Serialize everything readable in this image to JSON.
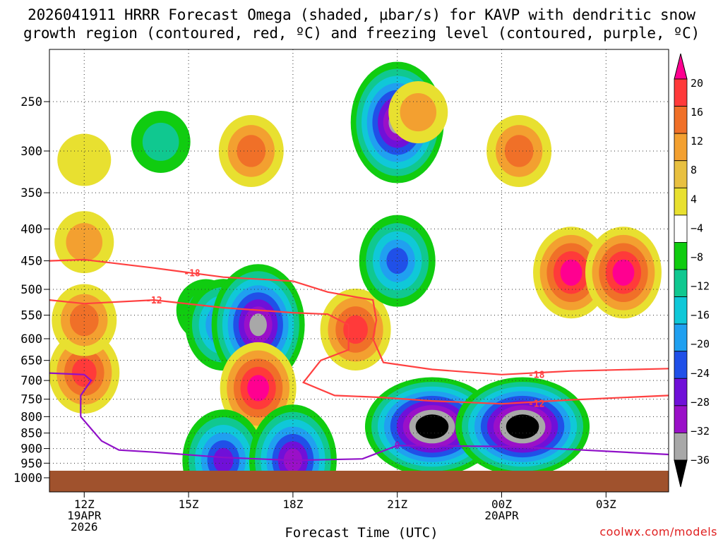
{
  "title_line1": "2026041911 HRRR Forecast Omega (shaded, µbar/s) for KAVP with dendritic snow",
  "title_line2": "growth region (contoured, red, ºC) and freezing level (contoured, purple, ºC)",
  "footer_url": "coolwx.com/models",
  "chart_data": {
    "type": "heatmap",
    "title": "2026041911 HRRR Forecast Omega (shaded, µbar/s) for KAVP with dendritic snow growth region (contoured, red, ºC) and freezing level (contoured, purple, ºC)",
    "xlabel": "Forecast Time (UTC)",
    "ylabel": "",
    "y_log_pressure": true,
    "ylim": [
      1000,
      200
    ],
    "xlim": [
      11,
      28.8
    ],
    "grid": true,
    "y_ticks": [
      250,
      300,
      350,
      400,
      450,
      500,
      550,
      600,
      650,
      700,
      750,
      800,
      850,
      900,
      950,
      1000
    ],
    "x_ticks": [
      {
        "hour": 12,
        "labels": [
          "12Z",
          "19APR",
          "2026"
        ]
      },
      {
        "hour": 15,
        "labels": [
          "15Z"
        ]
      },
      {
        "hour": 18,
        "labels": [
          "18Z"
        ]
      },
      {
        "hour": 21,
        "labels": [
          "21Z"
        ]
      },
      {
        "hour": 24,
        "labels": [
          "00Z",
          "20APR"
        ]
      },
      {
        "hour": 27,
        "labels": [
          "03Z"
        ]
      }
    ],
    "colorbar": {
      "labels": [
        "20",
        "16",
        "12",
        "8",
        "4",
        "−4",
        "−8",
        "−12",
        "−16",
        "−20",
        "−24",
        "−28",
        "−32",
        "−36"
      ],
      "colors": [
        "#ff0090",
        "#ff3a3a",
        "#f07028",
        "#f3a030",
        "#e8c040",
        "#e8e030",
        "#ffffff",
        "#10cc10",
        "#10c890",
        "#10c8d8",
        "#20a0f0",
        "#2050e8",
        "#7010d8",
        "#9a10c8",
        "#a8a8a8",
        "#000000"
      ]
    },
    "omega_field": {
      "units": "µbar/s",
      "cells": [
        {
          "hour": 12.0,
          "p": 680,
          "v": 16
        },
        {
          "hour": 12.0,
          "p": 560,
          "v": 12
        },
        {
          "hour": 12.0,
          "p": 420,
          "v": 8
        },
        {
          "hour": 12.0,
          "p": 310,
          "v": 5
        },
        {
          "hour": 14.2,
          "p": 290,
          "v": -6
        },
        {
          "hour": 15.5,
          "p": 540,
          "v": -6
        },
        {
          "hour": 16.0,
          "p": 570,
          "v": -18
        },
        {
          "hour": 16.8,
          "p": 300,
          "v": 12
        },
        {
          "hour": 17.0,
          "p": 570,
          "v": -30
        },
        {
          "hour": 17.0,
          "p": 720,
          "v": 18
        },
        {
          "hour": 19.8,
          "p": 580,
          "v": 14
        },
        {
          "hour": 21.0,
          "p": 270,
          "v": -30
        },
        {
          "hour": 21.0,
          "p": 450,
          "v": -18
        },
        {
          "hour": 21.6,
          "p": 260,
          "v": 6
        },
        {
          "hour": 22.0,
          "p": 830,
          "v": -40
        },
        {
          "hour": 24.6,
          "p": 830,
          "v": -40
        },
        {
          "hour": 24.5,
          "p": 300,
          "v": 10
        },
        {
          "hour": 26.0,
          "p": 470,
          "v": 20
        },
        {
          "hour": 27.5,
          "p": 470,
          "v": 20
        },
        {
          "hour": 16.0,
          "p": 940,
          "v": -24
        },
        {
          "hour": 18.0,
          "p": 940,
          "v": -28
        }
      ]
    },
    "series": [
      {
        "name": "-18",
        "color": "#ff4040",
        "points": [
          [
            11.0,
            450
          ],
          [
            12.0,
            448
          ],
          [
            14.0,
            462
          ],
          [
            16.0,
            478
          ],
          [
            18.0,
            485
          ],
          [
            19.0,
            505
          ],
          [
            20.3,
            520
          ],
          [
            20.4,
            560
          ],
          [
            20.3,
            600
          ],
          [
            20.6,
            655
          ],
          [
            22.0,
            672
          ],
          [
            24.0,
            685
          ],
          [
            26.0,
            676
          ],
          [
            28.8,
            670
          ]
        ]
      },
      {
        "name": "-12",
        "color": "#ff4040",
        "points": [
          [
            11.0,
            520
          ],
          [
            12.0,
            527
          ],
          [
            14.0,
            520
          ],
          [
            16.0,
            535
          ],
          [
            18.0,
            545
          ],
          [
            19.0,
            548
          ],
          [
            19.6,
            570
          ],
          [
            19.6,
            625
          ],
          [
            18.8,
            650
          ],
          [
            18.3,
            705
          ],
          [
            19.2,
            740
          ],
          [
            20.5,
            745
          ],
          [
            22.0,
            755
          ],
          [
            24.0,
            763
          ],
          [
            26.0,
            752
          ],
          [
            28.8,
            740
          ]
        ]
      },
      {
        "name": "0",
        "color": "#9010c8",
        "points": [
          [
            11.0,
            681
          ],
          [
            12.0,
            685
          ],
          [
            12.2,
            700
          ],
          [
            11.9,
            740
          ],
          [
            11.9,
            800
          ],
          [
            12.5,
            875
          ],
          [
            13.0,
            905
          ],
          [
            14.0,
            912
          ],
          [
            16.0,
            930
          ],
          [
            18.0,
            940
          ],
          [
            20.0,
            935
          ],
          [
            21.0,
            890
          ],
          [
            24.0,
            893
          ],
          [
            26.0,
            903
          ],
          [
            28.8,
            920
          ]
        ]
      }
    ],
    "contour_labels": [
      {
        "text": "-18",
        "hour": 15.1,
        "p": 470
      },
      {
        "text": "-12",
        "hour": 14.0,
        "p": 520
      },
      {
        "text": "-18",
        "hour": 25.0,
        "p": 684
      },
      {
        "text": "-12",
        "hour": 25.0,
        "p": 762
      },
      {
        "text": "0",
        "hour": 21.0,
        "p": 888
      }
    ]
  }
}
